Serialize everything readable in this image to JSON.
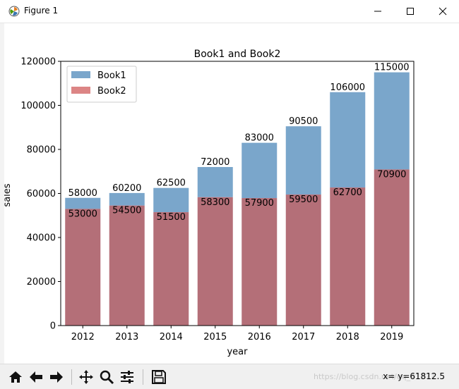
{
  "window": {
    "title": "Figure 1",
    "app_icon": "matplotlib-icon",
    "controls": [
      "minimize-icon",
      "maximize-icon",
      "close-icon"
    ]
  },
  "chart_data": {
    "type": "bar",
    "title": "Book1 and Book2",
    "xlabel": "year",
    "ylabel": "sales",
    "categories": [
      "2012",
      "2013",
      "2014",
      "2015",
      "2016",
      "2017",
      "2018",
      "2019"
    ],
    "series": [
      {
        "name": "Book1",
        "color": "#7aa6cb",
        "values": [
          58000,
          60200,
          62500,
          72000,
          83000,
          90500,
          106000,
          115000
        ]
      },
      {
        "name": "Book2",
        "color": "#dc8585",
        "values": [
          53000,
          54500,
          51500,
          58300,
          57900,
          59500,
          62700,
          70900
        ]
      }
    ],
    "overlap_color": "#b46f78",
    "ylim": [
      0,
      120000
    ],
    "yticks": [
      0,
      20000,
      40000,
      60000,
      80000,
      100000,
      120000
    ],
    "legend_position": "upper-left",
    "grid": false
  },
  "toolbar": {
    "buttons": [
      "home-icon",
      "back-arrow-icon",
      "forward-arrow-icon",
      "pan-icon",
      "zoom-icon",
      "subplots-icon",
      "save-icon"
    ],
    "coordinates": "x= y=61812.5"
  },
  "watermark": "https://blog.csdn.net/qq_41377"
}
